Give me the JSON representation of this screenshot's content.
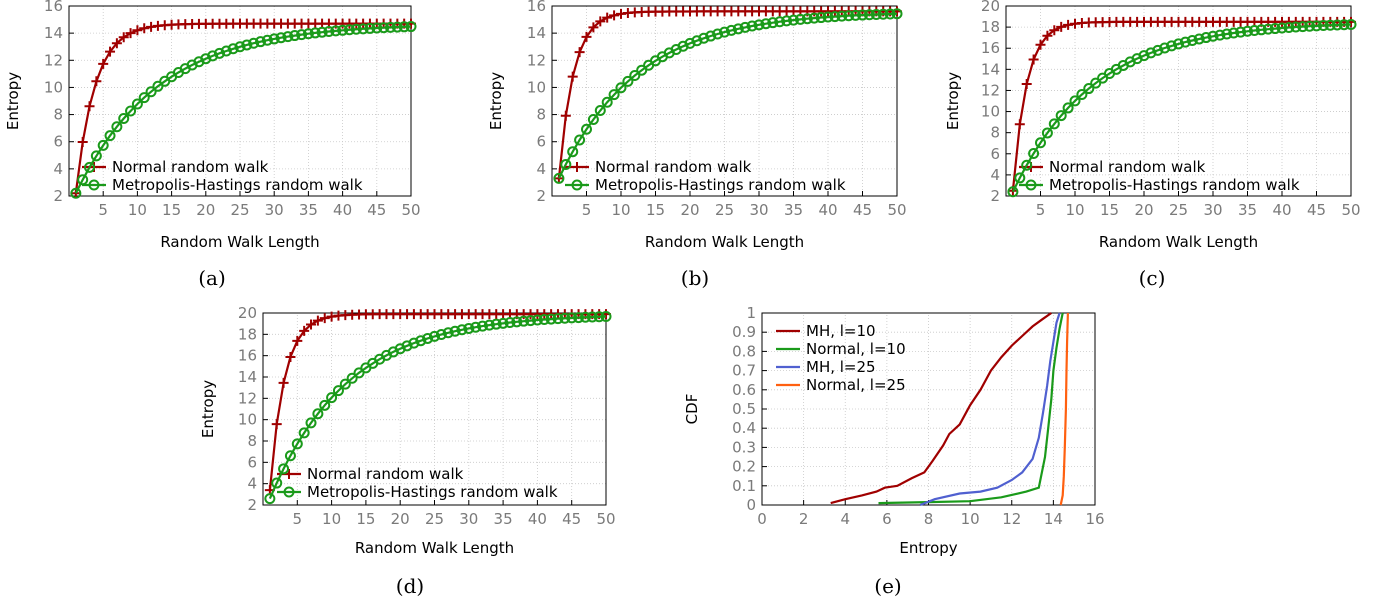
{
  "captions": [
    "(a)",
    "(b)",
    "(c)",
    "(d)",
    "(e)"
  ],
  "colors": {
    "normal": "#a00000",
    "mh": "#1a9a1a",
    "blue": "#5060d0",
    "orange": "#ff6010",
    "grid": "#c8c8c8",
    "tick_text": "#7a7a7a"
  },
  "chart_data": [
    {
      "id": "a",
      "type": "line",
      "xlabel": "Random Walk Length",
      "ylabel": "Entropy",
      "xlim": [
        0,
        50
      ],
      "ylim": [
        2,
        16
      ],
      "xticks": [
        5,
        10,
        15,
        20,
        25,
        30,
        35,
        40,
        45,
        50
      ],
      "yticks": [
        2,
        4,
        6,
        8,
        10,
        12,
        14,
        16
      ],
      "grid": true,
      "legend_position": "bottom-left",
      "series": [
        {
          "name": "Normal random walk",
          "marker": "plus",
          "model": {
            "start": 2.2,
            "end": 14.7,
            "k": 0.36
          },
          "x_range": [
            1,
            50
          ]
        },
        {
          "name": "Metropolis-Hastings random walk",
          "marker": "circle",
          "model": {
            "start": 2.2,
            "end": 14.7,
            "k": 0.083
          },
          "x_range": [
            1,
            50
          ]
        }
      ]
    },
    {
      "id": "b",
      "type": "line",
      "xlabel": "Random Walk Length",
      "ylabel": "Entropy",
      "xlim": [
        0,
        50
      ],
      "ylim": [
        2,
        16
      ],
      "xticks": [
        5,
        10,
        15,
        20,
        25,
        30,
        35,
        40,
        45,
        50
      ],
      "yticks": [
        2,
        4,
        6,
        8,
        10,
        12,
        14,
        16
      ],
      "grid": true,
      "legend_position": "bottom-left",
      "series": [
        {
          "name": "Normal random walk",
          "marker": "plus",
          "model": {
            "start": 3.3,
            "end": 15.6,
            "k": 0.47
          },
          "x_range": [
            1,
            50
          ]
        },
        {
          "name": "Metropolis-Hastings random walk",
          "marker": "circle",
          "model": {
            "start": 3.3,
            "end": 15.6,
            "k": 0.087
          },
          "x_range": [
            1,
            50
          ]
        }
      ]
    },
    {
      "id": "c",
      "type": "line",
      "xlabel": "Random Walk Length",
      "ylabel": "Entropy",
      "xlim": [
        0,
        50
      ],
      "ylim": [
        2,
        20
      ],
      "xticks": [
        5,
        10,
        15,
        20,
        25,
        30,
        35,
        40,
        45,
        50
      ],
      "yticks": [
        2,
        4,
        6,
        8,
        10,
        12,
        14,
        16,
        18,
        20
      ],
      "grid": true,
      "legend_position": "bottom-left",
      "series": [
        {
          "name": "Normal random walk",
          "marker": "plus",
          "model": {
            "start": 2.5,
            "end": 18.5,
            "k": 0.5
          },
          "x_range": [
            1,
            50
          ]
        },
        {
          "name": "Metropolis-Hastings random walk",
          "marker": "circle",
          "model": {
            "start": 2.4,
            "end": 18.5,
            "k": 0.085
          },
          "x_range": [
            1,
            50
          ]
        }
      ]
    },
    {
      "id": "d",
      "type": "line",
      "xlabel": "Random Walk Length",
      "ylabel": "Entropy",
      "xlim": [
        0,
        50
      ],
      "ylim": [
        2,
        20
      ],
      "xticks": [
        5,
        10,
        15,
        20,
        25,
        30,
        35,
        40,
        45,
        50
      ],
      "yticks": [
        2,
        4,
        6,
        8,
        10,
        12,
        14,
        16,
        18,
        20
      ],
      "grid": true,
      "legend_position": "bottom-left",
      "series": [
        {
          "name": "Normal random walk",
          "marker": "plus",
          "model": {
            "start": 3.4,
            "end": 19.9,
            "k": 0.47
          },
          "x_range": [
            1,
            50
          ]
        },
        {
          "name": "Metropolis-Hastings random walk",
          "marker": "circle",
          "model": {
            "start": 2.6,
            "end": 19.9,
            "k": 0.088
          },
          "x_range": [
            1,
            50
          ]
        }
      ]
    },
    {
      "id": "e",
      "type": "line",
      "xlabel": "Entropy",
      "ylabel": "CDF",
      "xlim": [
        0,
        16
      ],
      "ylim": [
        0,
        1
      ],
      "xticks": [
        0,
        2,
        4,
        6,
        8,
        10,
        12,
        14,
        16
      ],
      "yticks": [
        0,
        0.1,
        0.2,
        0.3,
        0.4,
        0.5,
        0.6,
        0.7,
        0.8,
        0.9,
        1
      ],
      "grid": true,
      "legend_position": "top-left",
      "series": [
        {
          "name": "MH, l=10",
          "color_key": "normal",
          "points": [
            [
              3.3,
              0.01
            ],
            [
              4,
              0.03
            ],
            [
              4.8,
              0.05
            ],
            [
              5.5,
              0.07
            ],
            [
              5.9,
              0.09
            ],
            [
              6.5,
              0.1
            ],
            [
              7.2,
              0.14
            ],
            [
              7.8,
              0.17
            ],
            [
              8.2,
              0.23
            ],
            [
              8.7,
              0.31
            ],
            [
              9.0,
              0.37
            ],
            [
              9.5,
              0.42
            ],
            [
              10.0,
              0.52
            ],
            [
              10.5,
              0.6
            ],
            [
              11.0,
              0.7
            ],
            [
              11.5,
              0.77
            ],
            [
              12.0,
              0.83
            ],
            [
              12.5,
              0.88
            ],
            [
              13.0,
              0.93
            ],
            [
              13.5,
              0.97
            ],
            [
              13.9,
              1.0
            ]
          ]
        },
        {
          "name": "Normal, l=10",
          "color_key": "mh",
          "points": [
            [
              5.6,
              0.01
            ],
            [
              8.0,
              0.015
            ],
            [
              10.0,
              0.02
            ],
            [
              11.5,
              0.04
            ],
            [
              12.7,
              0.07
            ],
            [
              13.3,
              0.09
            ],
            [
              13.6,
              0.25
            ],
            [
              13.75,
              0.4
            ],
            [
              13.9,
              0.55
            ],
            [
              14.0,
              0.7
            ],
            [
              14.15,
              0.82
            ],
            [
              14.3,
              0.92
            ],
            [
              14.45,
              1.0
            ]
          ]
        },
        {
          "name": "MH, l=25",
          "color_key": "blue",
          "points": [
            [
              7.6,
              0.0
            ],
            [
              8.3,
              0.03
            ],
            [
              9.5,
              0.06
            ],
            [
              10.5,
              0.07
            ],
            [
              11.3,
              0.09
            ],
            [
              12.0,
              0.13
            ],
            [
              12.5,
              0.17
            ],
            [
              13.0,
              0.24
            ],
            [
              13.3,
              0.35
            ],
            [
              13.5,
              0.48
            ],
            [
              13.7,
              0.62
            ],
            [
              13.85,
              0.75
            ],
            [
              14.0,
              0.85
            ],
            [
              14.15,
              0.95
            ],
            [
              14.3,
              1.0
            ]
          ]
        },
        {
          "name": "Normal, l=25",
          "color_key": "orange",
          "points": [
            [
              14.35,
              0.0
            ],
            [
              14.45,
              0.05
            ],
            [
              14.5,
              0.15
            ],
            [
              14.55,
              0.3
            ],
            [
              14.6,
              0.5
            ],
            [
              14.63,
              0.7
            ],
            [
              14.66,
              0.85
            ],
            [
              14.7,
              1.0
            ]
          ]
        }
      ]
    }
  ]
}
